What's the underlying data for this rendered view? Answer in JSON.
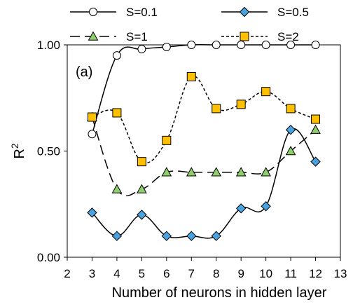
{
  "chart_data": {
    "type": "line",
    "panel_label": "(a)",
    "xlabel": "Number of neurons in hidden layer",
    "ylabel_main": "R",
    "ylabel_sup": "2",
    "xlim": [
      2,
      13
    ],
    "ylim": [
      0,
      1
    ],
    "x_ticks": [
      2,
      3,
      4,
      5,
      6,
      7,
      8,
      9,
      10,
      11,
      12,
      13
    ],
    "y_ticks": [
      "0.00",
      "0.50",
      "1.00"
    ],
    "y_tick_values": [
      0,
      0.5,
      1
    ],
    "grid": false,
    "legend_position": "top",
    "series": [
      {
        "name": "S=0.1",
        "marker": "circle",
        "line_style": "solid",
        "marker_fill": "#ffffff",
        "x": [
          3,
          4,
          5,
          6,
          7,
          8,
          9,
          10,
          11,
          12
        ],
        "values": [
          0.58,
          0.95,
          0.98,
          0.99,
          1.0,
          1.0,
          1.0,
          1.0,
          1.0,
          1.0
        ]
      },
      {
        "name": "S=0.5",
        "marker": "diamond",
        "line_style": "solid",
        "marker_fill": "#4aa3df",
        "x": [
          3,
          4,
          5,
          6,
          7,
          8,
          9,
          10,
          11,
          12
        ],
        "values": [
          0.21,
          0.1,
          0.2,
          0.1,
          0.1,
          0.1,
          0.23,
          0.24,
          0.6,
          0.45
        ]
      },
      {
        "name": "S=1",
        "marker": "triangle",
        "line_style": "longdash",
        "marker_fill": "#8fce6a",
        "x": [
          3,
          4,
          5,
          6,
          7,
          8,
          9,
          10,
          11,
          12
        ],
        "values": [
          0.66,
          0.32,
          0.32,
          0.4,
          0.4,
          0.4,
          0.4,
          0.4,
          0.5,
          0.6
        ]
      },
      {
        "name": "S=2",
        "marker": "square",
        "line_style": "shortdash",
        "marker_fill": "#ffc000",
        "x": [
          3,
          4,
          5,
          6,
          7,
          8,
          9,
          10,
          11,
          12
        ],
        "values": [
          0.66,
          0.68,
          0.45,
          0.55,
          0.85,
          0.7,
          0.72,
          0.78,
          0.7,
          0.65
        ]
      }
    ]
  }
}
